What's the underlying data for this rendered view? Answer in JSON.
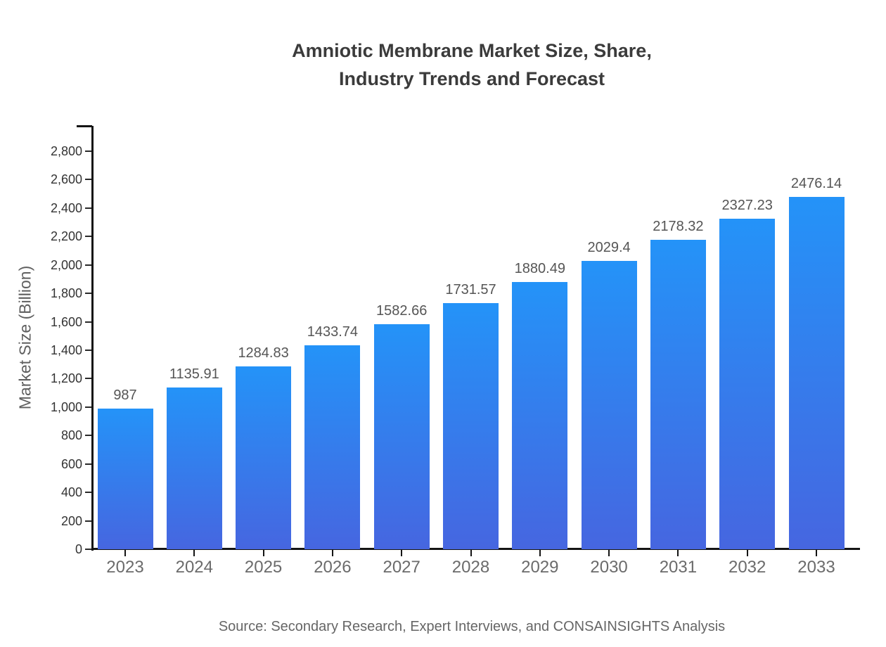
{
  "title": {
    "line1": "Amniotic Membrane Market Size, Share,",
    "line2": "Industry Trends and Forecast"
  },
  "source_note": "Source: Secondary Research, Expert Interviews, and CONSAINSIGHTS Analysis",
  "colors": {
    "bar_gradient_top": "#2493f8",
    "bar_gradient_bottom": "#4666e0",
    "axis": "#141414",
    "title_text": "#3b3b3b",
    "label_text": "#555555"
  },
  "chart_data": {
    "type": "bar",
    "title": "Amniotic Membrane Market Size, Share, Industry Trends and Forecast",
    "xlabel": "",
    "ylabel": "Market Size (Billion)",
    "categories": [
      "2023",
      "2024",
      "2025",
      "2026",
      "2027",
      "2028",
      "2029",
      "2030",
      "2031",
      "2032",
      "2033"
    ],
    "values": [
      987,
      1135.91,
      1284.83,
      1433.74,
      1582.66,
      1731.57,
      1880.49,
      2029.4,
      2178.32,
      2327.23,
      2476.14
    ],
    "value_labels": [
      "987",
      "1135.91",
      "1284.83",
      "1433.74",
      "1582.66",
      "1731.57",
      "1880.49",
      "2029.4",
      "2178.32",
      "2327.23",
      "2476.14"
    ],
    "ylim": [
      0,
      2980
    ],
    "yticks": [
      0,
      200,
      400,
      600,
      800,
      1000,
      1200,
      1400,
      1600,
      1800,
      2000,
      2200,
      2400,
      2600,
      2800
    ],
    "grid": false,
    "legend": "none",
    "annotation": "Source: Secondary Research, Expert Interviews, and CONSAINSIGHTS Analysis"
  }
}
